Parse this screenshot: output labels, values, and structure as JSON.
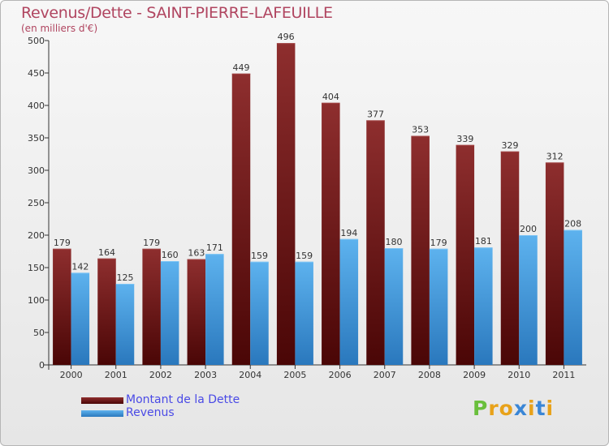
{
  "title": "Revenus/Dette - SAINT-PIERRE-LAFEUILLE",
  "subtitle": "(en milliers d'€)",
  "logo_text": "Proxiti",
  "colors": {
    "dette": "#7a1e1e",
    "revenus": "#4aa3e6",
    "title": "#b04560",
    "legend_text": "#4a4ae6"
  },
  "chart_data": {
    "type": "bar",
    "categories": [
      "2000",
      "2001",
      "2002",
      "2003",
      "2004",
      "2005",
      "2006",
      "2007",
      "2008",
      "2009",
      "2010",
      "2011"
    ],
    "series": [
      {
        "name": "Montant de la Dette",
        "values": [
          179,
          164,
          179,
          163,
          449,
          496,
          404,
          377,
          353,
          339,
          329,
          312
        ]
      },
      {
        "name": "Revenus",
        "values": [
          142,
          125,
          160,
          171,
          159,
          159,
          194,
          180,
          179,
          181,
          200,
          208
        ]
      }
    ],
    "ylim": [
      0,
      500
    ],
    "yticks": [
      0,
      50,
      100,
      150,
      200,
      250,
      300,
      350,
      400,
      450,
      500
    ],
    "grid": false,
    "legend": "bottom-left"
  }
}
